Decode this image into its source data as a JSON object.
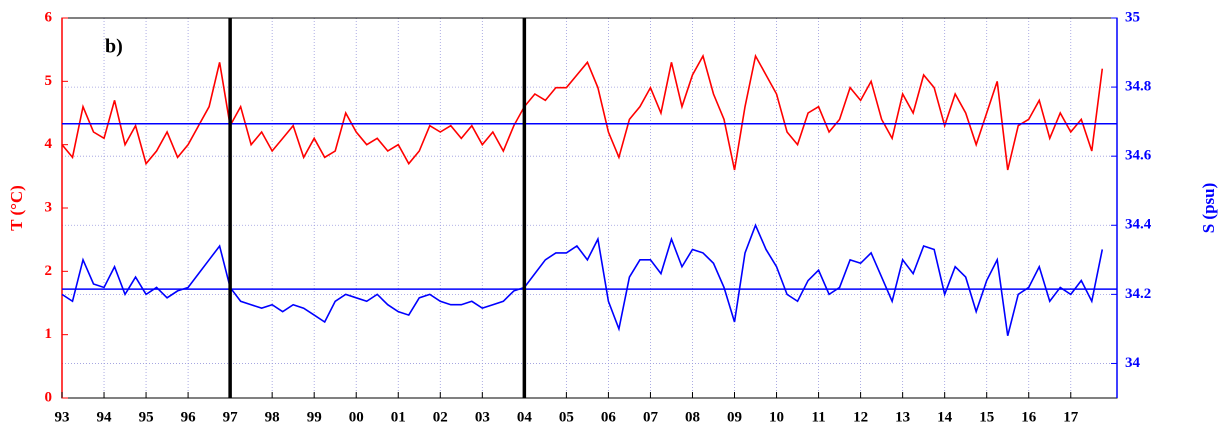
{
  "chart_data": {
    "type": "line",
    "annotation": "b)",
    "ylabel": "T (°C)",
    "y2label": "S (psu)",
    "xlim": [
      1993,
      2018.1
    ],
    "xticks": [
      {
        "value": 1993,
        "label": "93"
      },
      {
        "value": 1994,
        "label": "94"
      },
      {
        "value": 1995,
        "label": "95"
      },
      {
        "value": 1996,
        "label": "96"
      },
      {
        "value": 1997,
        "label": "97"
      },
      {
        "value": 1998,
        "label": "98"
      },
      {
        "value": 1999,
        "label": "99"
      },
      {
        "value": 2000,
        "label": "00"
      },
      {
        "value": 2001,
        "label": "01"
      },
      {
        "value": 2002,
        "label": "02"
      },
      {
        "value": 2003,
        "label": "03"
      },
      {
        "value": 2004,
        "label": "04"
      },
      {
        "value": 2005,
        "label": "05"
      },
      {
        "value": 2006,
        "label": "06"
      },
      {
        "value": 2007,
        "label": "07"
      },
      {
        "value": 2008,
        "label": "08"
      },
      {
        "value": 2009,
        "label": "09"
      },
      {
        "value": 2010,
        "label": "10"
      },
      {
        "value": 2011,
        "label": "11"
      },
      {
        "value": 2012,
        "label": "12"
      },
      {
        "value": 2013,
        "label": "13"
      },
      {
        "value": 2014,
        "label": "14"
      },
      {
        "value": 2015,
        "label": "15"
      },
      {
        "value": 2016,
        "label": "16"
      },
      {
        "value": 2017,
        "label": "17"
      }
    ],
    "ylim": [
      0,
      6
    ],
    "yticks": [
      0,
      1,
      2,
      3,
      4,
      5,
      6
    ],
    "ycolor": "#ff0000",
    "y2lim": [
      33.9,
      35
    ],
    "y2ticks": [
      34,
      34.2,
      34.4,
      34.6,
      34.8,
      35
    ],
    "y2color": "#0000ff",
    "grid": true,
    "grid_color": "#9999dd",
    "x": [
      1993,
      1993.25,
      1993.5,
      1993.75,
      1994,
      1994.25,
      1994.5,
      1994.75,
      1995,
      1995.25,
      1995.5,
      1995.75,
      1996,
      1996.25,
      1996.5,
      1996.75,
      1997,
      1997.25,
      1997.5,
      1997.75,
      1998,
      1998.25,
      1998.5,
      1998.75,
      1999,
      1999.25,
      1999.5,
      1999.75,
      2000,
      2000.25,
      2000.5,
      2000.75,
      2001,
      2001.25,
      2001.5,
      2001.75,
      2002,
      2002.25,
      2002.5,
      2002.75,
      2003,
      2003.25,
      2003.5,
      2003.75,
      2004,
      2004.25,
      2004.5,
      2004.75,
      2005,
      2005.25,
      2005.5,
      2005.75,
      2006,
      2006.25,
      2006.5,
      2006.75,
      2007,
      2007.25,
      2007.5,
      2007.75,
      2008,
      2008.25,
      2008.5,
      2008.75,
      2009,
      2009.25,
      2009.5,
      2009.75,
      2010,
      2010.25,
      2010.5,
      2010.75,
      2011,
      2011.25,
      2011.5,
      2011.75,
      2012,
      2012.25,
      2012.5,
      2012.75,
      2013,
      2013.25,
      2013.5,
      2013.75,
      2014,
      2014.25,
      2014.5,
      2014.75,
      2015,
      2015.25,
      2015.5,
      2015.75,
      2016,
      2016.25,
      2016.5,
      2016.75,
      2017,
      2017.25,
      2017.5,
      2017.75
    ],
    "series": [
      {
        "color": "#ff0000",
        "values": [
          4.0,
          3.8,
          4.6,
          4.2,
          4.1,
          4.7,
          4.0,
          4.3,
          3.7,
          3.9,
          4.2,
          3.8,
          4.0,
          4.3,
          4.6,
          5.3,
          4.3,
          4.6,
          4.0,
          4.2,
          3.9,
          4.1,
          4.3,
          3.8,
          4.1,
          3.8,
          3.9,
          4.5,
          4.2,
          4.0,
          4.1,
          3.9,
          4.0,
          3.7,
          3.9,
          4.3,
          4.2,
          4.3,
          4.1,
          4.3,
          4.0,
          4.2,
          3.9,
          4.3,
          4.6,
          4.8,
          4.7,
          4.9,
          4.9,
          5.1,
          5.3,
          4.9,
          4.2,
          3.8,
          4.4,
          4.6,
          4.9,
          4.5,
          5.3,
          4.6,
          5.1,
          5.4,
          4.8,
          4.4,
          3.6,
          4.6,
          5.4,
          5.1,
          4.8,
          4.2,
          4.0,
          4.5,
          4.6,
          4.2,
          4.4,
          4.9,
          4.7,
          5.0,
          4.4,
          4.1,
          4.8,
          4.5,
          5.1,
          4.9,
          4.3,
          4.8,
          4.5,
          4.0,
          4.5,
          5.0,
          3.6,
          4.3,
          4.4,
          4.7,
          4.1,
          4.5,
          4.2,
          4.4,
          3.9,
          5.2
        ]
      },
      {
        "color": "#0000ff",
        "axis": "y2",
        "values": [
          34.2,
          34.18,
          34.3,
          34.23,
          34.22,
          34.28,
          34.2,
          34.25,
          34.2,
          34.22,
          34.19,
          34.21,
          34.22,
          34.26,
          34.3,
          34.34,
          34.22,
          34.18,
          34.17,
          34.16,
          34.17,
          34.15,
          34.17,
          34.16,
          34.14,
          34.12,
          34.18,
          34.2,
          34.19,
          34.18,
          34.2,
          34.17,
          34.15,
          34.14,
          34.19,
          34.2,
          34.18,
          34.17,
          34.17,
          34.18,
          34.16,
          34.17,
          34.18,
          34.21,
          34.22,
          34.26,
          34.3,
          34.32,
          34.32,
          34.34,
          34.3,
          34.36,
          34.18,
          34.1,
          34.25,
          34.3,
          34.3,
          34.26,
          34.36,
          34.28,
          34.33,
          34.32,
          34.29,
          34.22,
          34.12,
          34.32,
          34.4,
          34.33,
          34.28,
          34.2,
          34.18,
          34.24,
          34.27,
          34.2,
          34.22,
          34.3,
          34.29,
          34.32,
          34.25,
          34.18,
          34.3,
          34.26,
          34.34,
          34.33,
          34.2,
          34.28,
          34.25,
          34.15,
          34.24,
          34.3,
          34.08,
          34.2,
          34.22,
          34.28,
          34.18,
          34.22,
          34.2,
          34.24,
          34.18,
          34.33
        ]
      }
    ],
    "reference_lines": [
      {
        "value": 4.33,
        "color": "#0000ff"
      },
      {
        "value": 34.215,
        "axis": "y2",
        "color": "#0000ff"
      }
    ],
    "vertical_lines": [
      {
        "value": 1997,
        "color": "#000000"
      },
      {
        "value": 2004,
        "color": "#000000"
      }
    ]
  }
}
